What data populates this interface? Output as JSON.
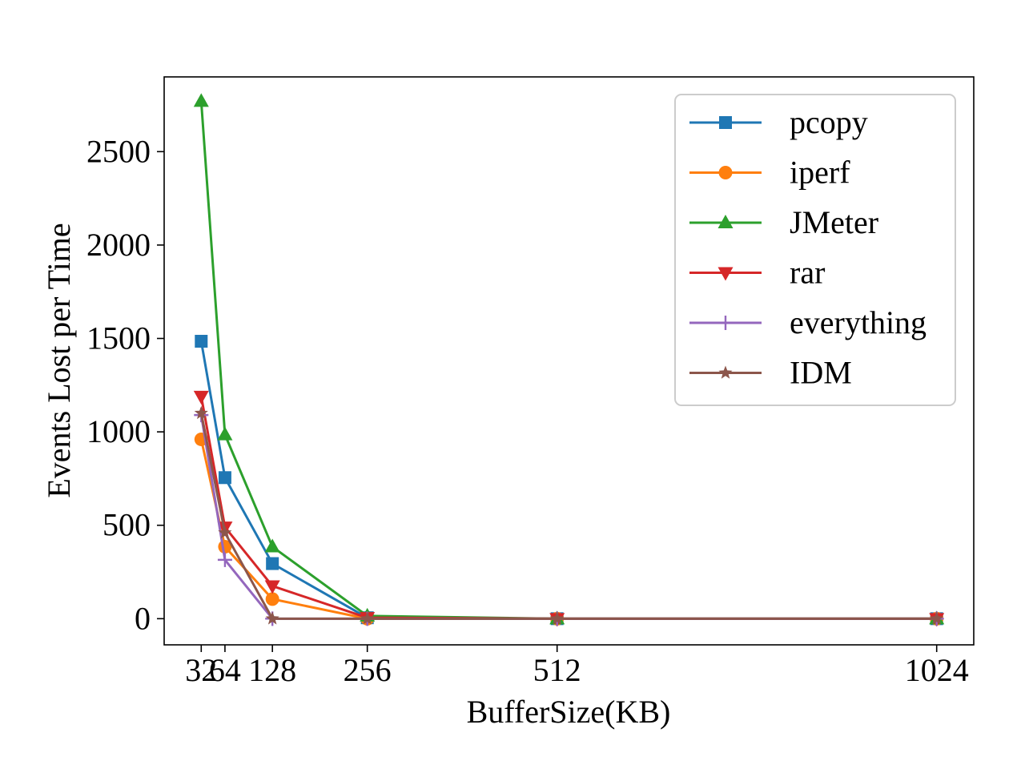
{
  "chart_data": {
    "type": "line",
    "title": "",
    "xlabel": "BufferSize(KB)",
    "ylabel": "Events Lost per Time",
    "x": [
      32,
      64,
      128,
      256,
      512,
      1024
    ],
    "x_tick_labels": [
      "32",
      "64",
      "128",
      "256",
      "512",
      "1024"
    ],
    "xlim": [
      -18,
      1074
    ],
    "ylim": [
      -140,
      2900
    ],
    "y_ticks": [
      0,
      500,
      1000,
      1500,
      2000,
      2500
    ],
    "y_tick_labels": [
      "0",
      "500",
      "1000",
      "1500",
      "2000",
      "2500"
    ],
    "grid": false,
    "legend_position": "top-right",
    "series": [
      {
        "name": "pcopy",
        "color": "#1f77b4",
        "marker": "square",
        "values": [
          1485,
          755,
          295,
          5,
          0,
          0
        ]
      },
      {
        "name": "iperf",
        "color": "#ff7f0e",
        "marker": "circle",
        "values": [
          960,
          385,
          105,
          0,
          0,
          0
        ]
      },
      {
        "name": "JMeter",
        "color": "#2ca02c",
        "marker": "triangle-up",
        "values": [
          2770,
          985,
          385,
          15,
          0,
          0
        ]
      },
      {
        "name": "rar",
        "color": "#d62728",
        "marker": "triangle-down",
        "values": [
          1190,
          490,
          175,
          5,
          0,
          0
        ]
      },
      {
        "name": "everything",
        "color": "#9467bd",
        "marker": "plus",
        "values": [
          1090,
          315,
          0,
          0,
          0,
          0
        ]
      },
      {
        "name": "IDM",
        "color": "#8c564b",
        "marker": "star",
        "values": [
          1100,
          460,
          0,
          0,
          0,
          0
        ]
      }
    ]
  }
}
